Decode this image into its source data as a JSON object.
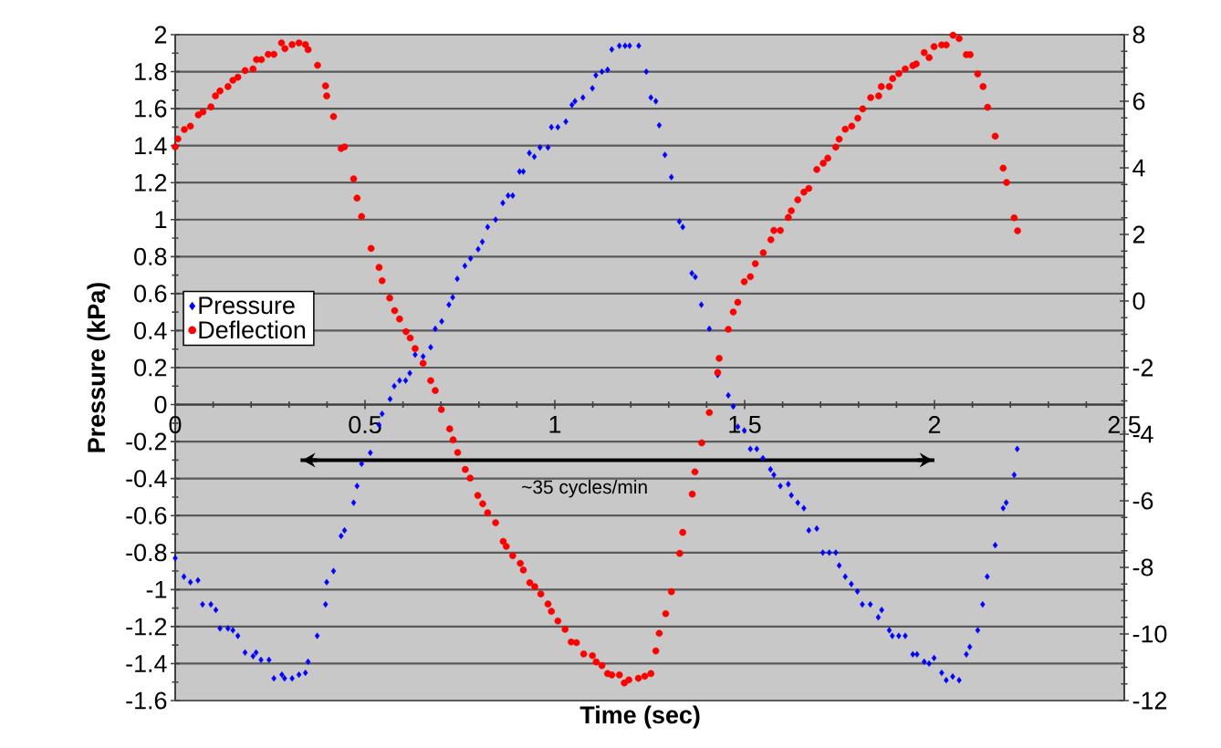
{
  "chart_data": {
    "type": "scatter",
    "xlabel": "Time (sec)",
    "ylabel": "Pressure (kPa)",
    "xlim": [
      0,
      2.5
    ],
    "xticks": [
      0,
      0.5,
      1,
      1.5,
      2,
      2.5
    ],
    "ylim": [
      -1.6,
      2
    ],
    "yticks": [
      2,
      1.8,
      1.6,
      1.4,
      1.2,
      1,
      0.8,
      0.6,
      0.4,
      0.2,
      0,
      -0.2,
      -0.4,
      -0.6,
      -0.8,
      -1,
      -1.2,
      -1.4,
      -1.6
    ],
    "y2lim": [
      -12,
      8
    ],
    "y2ticks": [
      8,
      6,
      4,
      2,
      0,
      -2,
      -4,
      -6,
      -8,
      -10,
      -12
    ],
    "grid": "y",
    "legend": "left",
    "annotations": [
      {
        "text": "~35 cycles/min",
        "x": 1.165,
        "y": -0.3
      }
    ],
    "series": [
      {
        "name": "Pressure",
        "color": "#0000ff",
        "marker": "diamond",
        "x": [
          0.0,
          0.023,
          0.04,
          0.06,
          0.072,
          0.094,
          0.107,
          0.118,
          0.139,
          0.152,
          0.165,
          0.184,
          0.205,
          0.213,
          0.226,
          0.247,
          0.26,
          0.281,
          0.288,
          0.308,
          0.326,
          0.343,
          0.35,
          0.374,
          0.396,
          0.399,
          0.417,
          0.437,
          0.446,
          0.47,
          0.479,
          0.491,
          0.514,
          0.537,
          0.545,
          0.566,
          0.577,
          0.591,
          0.607,
          0.618,
          0.632,
          0.653,
          0.673,
          0.685,
          0.702,
          0.721,
          0.731,
          0.743,
          0.763,
          0.778,
          0.798,
          0.809,
          0.823,
          0.844,
          0.863,
          0.877,
          0.889,
          0.907,
          0.917,
          0.933,
          0.946,
          0.961,
          0.982,
          0.991,
          1.008,
          1.029,
          1.045,
          1.053,
          1.074,
          1.099,
          1.108,
          1.124,
          1.139,
          1.15,
          1.17,
          1.185,
          1.197,
          1.221,
          1.241,
          1.253,
          1.266,
          1.275,
          1.29,
          1.307,
          1.328,
          1.337,
          1.361,
          1.37,
          1.386,
          1.407,
          1.429,
          1.457,
          1.47,
          1.482,
          1.499,
          1.515,
          1.532,
          1.548,
          1.568,
          1.577,
          1.594,
          1.615,
          1.623,
          1.64,
          1.656,
          1.669,
          1.69,
          1.706,
          1.723,
          1.74,
          1.749,
          1.765,
          1.781,
          1.797,
          1.81,
          1.831,
          1.852,
          1.861,
          1.881,
          1.889,
          1.906,
          1.923,
          1.943,
          1.954,
          1.973,
          1.986,
          1.999,
          2.019,
          2.031,
          2.048,
          2.065,
          2.084,
          2.093,
          2.114,
          2.127,
          2.139,
          2.16,
          2.181,
          2.189,
          2.21,
          2.218
        ],
        "values": [
          -0.83,
          -0.93,
          -0.96,
          -0.95,
          -1.08,
          -1.08,
          -1.11,
          -1.21,
          -1.21,
          -1.22,
          -1.25,
          -1.34,
          -1.36,
          -1.34,
          -1.38,
          -1.38,
          -1.48,
          -1.46,
          -1.48,
          -1.48,
          -1.46,
          -1.45,
          -1.39,
          -1.25,
          -1.08,
          -0.96,
          -0.9,
          -0.71,
          -0.68,
          -0.53,
          -0.44,
          -0.32,
          -0.26,
          -0.11,
          -0.05,
          0.03,
          0.1,
          0.13,
          0.13,
          0.17,
          0.27,
          0.26,
          0.31,
          0.41,
          0.45,
          0.54,
          0.58,
          0.68,
          0.75,
          0.79,
          0.84,
          0.88,
          0.96,
          1.0,
          1.09,
          1.13,
          1.13,
          1.26,
          1.26,
          1.36,
          1.34,
          1.39,
          1.39,
          1.5,
          1.5,
          1.53,
          1.62,
          1.64,
          1.66,
          1.71,
          1.78,
          1.8,
          1.81,
          1.92,
          1.94,
          1.94,
          1.94,
          1.94,
          1.8,
          1.66,
          1.64,
          1.51,
          1.35,
          1.23,
          0.99,
          0.96,
          0.71,
          0.69,
          0.54,
          0.41,
          0.16,
          0.05,
          -0.01,
          -0.12,
          -0.14,
          -0.24,
          -0.24,
          -0.29,
          -0.35,
          -0.38,
          -0.44,
          -0.43,
          -0.49,
          -0.53,
          -0.56,
          -0.68,
          -0.67,
          -0.8,
          -0.8,
          -0.8,
          -0.87,
          -0.93,
          -0.97,
          -1.01,
          -1.08,
          -1.08,
          -1.15,
          -1.11,
          -1.22,
          -1.25,
          -1.25,
          -1.25,
          -1.35,
          -1.35,
          -1.39,
          -1.4,
          -1.37,
          -1.45,
          -1.49,
          -1.47,
          -1.49,
          -1.35,
          -1.31,
          -1.22,
          -1.08,
          -0.93,
          -0.76,
          -0.56,
          -0.53,
          -0.38,
          -0.24
        ]
      },
      {
        "type": "line",
        "color": "#000000",
        "marker": "none",
        "line_style": "solid",
        "x": [
          0.33,
          2.0
        ],
        "values": [
          -0.3,
          -0.3
        ]
      },
      {
        "name": "Deflection",
        "color": "#ff0000",
        "marker": "circle",
        "axis": "y2",
        "x": [
          0.0,
          0.007,
          0.024,
          0.04,
          0.061,
          0.073,
          0.094,
          0.106,
          0.118,
          0.139,
          0.152,
          0.165,
          0.184,
          0.205,
          0.214,
          0.227,
          0.245,
          0.26,
          0.28,
          0.289,
          0.308,
          0.326,
          0.343,
          0.35,
          0.375,
          0.396,
          0.399,
          0.417,
          0.437,
          0.446,
          0.47,
          0.479,
          0.491,
          0.516,
          0.537,
          0.545,
          0.565,
          0.578,
          0.591,
          0.608,
          0.619,
          0.632,
          0.653,
          0.673,
          0.685,
          0.701,
          0.723,
          0.732,
          0.744,
          0.764,
          0.777,
          0.797,
          0.81,
          0.823,
          0.844,
          0.864,
          0.872,
          0.889,
          0.909,
          0.917,
          0.934,
          0.947,
          0.963,
          0.982,
          0.991,
          1.008,
          1.027,
          1.043,
          1.057,
          1.076,
          1.099,
          1.109,
          1.124,
          1.139,
          1.15,
          1.17,
          1.183,
          1.195,
          1.22,
          1.237,
          1.253,
          1.266,
          1.275,
          1.292,
          1.307,
          1.329,
          1.337,
          1.362,
          1.369,
          1.387,
          1.407,
          1.429,
          1.433,
          1.457,
          1.47,
          1.482,
          1.499,
          1.515,
          1.528,
          1.549,
          1.569,
          1.577,
          1.594,
          1.615,
          1.623,
          1.64,
          1.656,
          1.669,
          1.69,
          1.707,
          1.719,
          1.74,
          1.749,
          1.765,
          1.782,
          1.798,
          1.811,
          1.832,
          1.853,
          1.86,
          1.881,
          1.89,
          1.906,
          1.923,
          1.943,
          1.952,
          1.973,
          1.986,
          1.999,
          2.019,
          2.031,
          2.049,
          2.065,
          2.084,
          2.094,
          2.114,
          2.128,
          2.14,
          2.16,
          2.181,
          2.19,
          2.21,
          2.219
        ],
        "values": [
          4.63,
          4.87,
          5.15,
          5.25,
          5.59,
          5.68,
          5.83,
          6.16,
          6.31,
          6.44,
          6.63,
          6.72,
          6.92,
          6.97,
          7.25,
          7.25,
          7.41,
          7.41,
          7.75,
          7.58,
          7.7,
          7.75,
          7.7,
          7.55,
          7.08,
          6.46,
          6.16,
          5.54,
          4.58,
          4.63,
          3.67,
          3.09,
          2.54,
          1.58,
          1.01,
          0.61,
          0.09,
          -0.29,
          -0.54,
          -0.92,
          -1.11,
          -1.43,
          -1.87,
          -2.39,
          -2.69,
          -3.26,
          -3.84,
          -4.17,
          -4.55,
          -5.06,
          -5.32,
          -5.84,
          -6.09,
          -6.36,
          -6.66,
          -7.22,
          -7.37,
          -7.65,
          -7.88,
          -8.08,
          -8.46,
          -8.58,
          -8.8,
          -9.1,
          -9.32,
          -9.61,
          -9.86,
          -10.24,
          -10.26,
          -10.6,
          -10.65,
          -10.84,
          -10.95,
          -11.19,
          -11.23,
          -11.23,
          -11.47,
          -11.38,
          -11.33,
          -11.27,
          -11.19,
          -10.51,
          -9.98,
          -9.39,
          -8.73,
          -7.58,
          -6.95,
          -5.8,
          -5.13,
          -4.26,
          -3.35,
          -2.15,
          -1.72,
          -0.85,
          -0.33,
          -0.04,
          0.58,
          0.73,
          1.12,
          1.45,
          1.84,
          2.12,
          2.12,
          2.51,
          2.71,
          3.04,
          3.27,
          3.38,
          3.95,
          4.14,
          4.29,
          4.62,
          4.86,
          5.16,
          5.25,
          5.49,
          5.77,
          6.11,
          6.16,
          6.44,
          6.44,
          6.68,
          6.83,
          6.97,
          7.07,
          7.12,
          7.46,
          7.31,
          7.64,
          7.69,
          7.69,
          7.98,
          7.88,
          7.4,
          7.4,
          6.82,
          6.44,
          5.82,
          4.95,
          3.99,
          3.56,
          2.5,
          2.11
        ]
      }
    ]
  }
}
